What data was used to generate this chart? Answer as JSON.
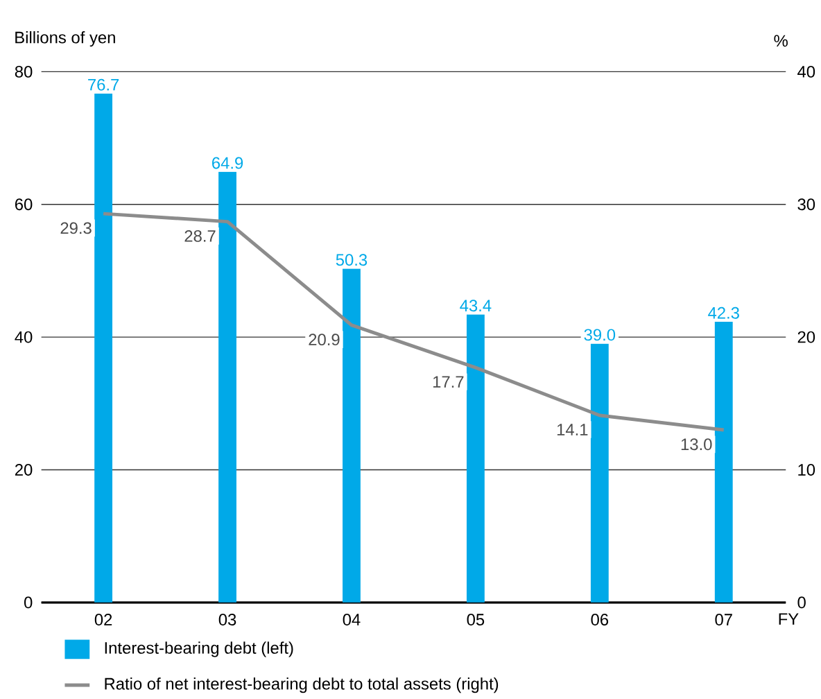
{
  "chart_data": {
    "type": "bar",
    "categories": [
      "02",
      "03",
      "04",
      "05",
      "06",
      "07"
    ],
    "xlabel": "FY",
    "ylabel": "Billions of yen",
    "y2label": "%",
    "ylim": [
      0,
      80
    ],
    "yticks": [
      0,
      20,
      40,
      60,
      80
    ],
    "y2lim": [
      0,
      40
    ],
    "y2ticks": [
      0,
      10,
      20,
      30,
      40
    ],
    "grid": "y",
    "legend": "bottom",
    "series": [
      {
        "name": "Interest-bearing debt (left)",
        "color": "#00a9e8",
        "values": [
          76.7,
          64.9,
          50.3,
          43.4,
          39.0,
          42.3
        ],
        "value_labels": [
          "76.7",
          "64.9",
          "50.3",
          "43.4",
          "39.0",
          "42.3"
        ]
      },
      {
        "name": "Ratio of net interest-bearing debt to total assets (right)",
        "type": "line",
        "axis": "y2",
        "color": "#8c8c8c",
        "values": [
          29.3,
          28.7,
          20.9,
          17.7,
          14.1,
          13.0
        ],
        "value_labels": [
          "29.3",
          "28.7",
          "20.9",
          "17.7",
          "14.1",
          "13.0"
        ]
      }
    ]
  }
}
